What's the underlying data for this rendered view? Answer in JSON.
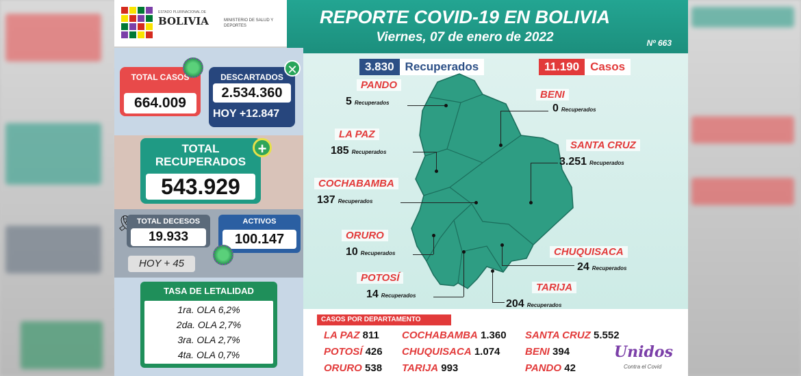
{
  "header": {
    "brand_top": "ESTADO PLURINACIONAL DE",
    "brand": "BOLIVIA",
    "ministry": "MINISTERIO DE SALUD Y DEPORTES",
    "title": "REPORTE COVID-19 EN BOLIVIA",
    "date": "Viernes, 07 de enero de 2022",
    "report_no": "Nº 663"
  },
  "totals": {
    "casos_label": "TOTAL CASOS",
    "casos_value": "664.009",
    "descartados_label": "DESCARTADOS",
    "descartados_value": "2.534.360",
    "descartados_today": "HOY +12.847",
    "recuperados_label": "TOTAL RECUPERADOS",
    "recuperados_value": "543.929",
    "decesos_label": "TOTAL DECESOS",
    "decesos_value": "19.933",
    "decesos_today": "HOY + 45",
    "activos_label": "ACTIVOS",
    "activos_value": "100.147"
  },
  "letalidad": {
    "title": "TASA DE LETALIDAD",
    "rows": [
      "1ra. OLA 6,2%",
      "2da. OLA 2,7%",
      "3ra. OLA  2,7%",
      "4ta. OLA 0,7%"
    ]
  },
  "daily": {
    "recuperados_value": "3.830",
    "recuperados_label": "Recuperados",
    "casos_value": "11.190",
    "casos_label": "Casos"
  },
  "map": {
    "rec_word": "Recuperados",
    "departments": [
      {
        "name": "PANDO",
        "value": "5"
      },
      {
        "name": "BENI",
        "value": "0"
      },
      {
        "name": "LA PAZ",
        "value": "185"
      },
      {
        "name": "SANTA CRUZ",
        "value": "3.251"
      },
      {
        "name": "COCHABAMBA",
        "value": "137"
      },
      {
        "name": "ORURO",
        "value": "10"
      },
      {
        "name": "CHUQUISACA",
        "value": "24"
      },
      {
        "name": "POTOSÍ",
        "value": "14"
      },
      {
        "name": "TARIJA",
        "value": "204"
      }
    ]
  },
  "casos_departamento": {
    "title": "CASOS POR DEPARTAMENTO",
    "rows": [
      {
        "name": "LA PAZ",
        "value": "811"
      },
      {
        "name": "COCHABAMBA",
        "value": "1.360"
      },
      {
        "name": "SANTA CRUZ",
        "value": "5.552"
      },
      {
        "name": "POTOSÍ",
        "value": "426"
      },
      {
        "name": "CHUQUISACA",
        "value": "1.074"
      },
      {
        "name": "BENI",
        "value": "394"
      },
      {
        "name": "ORURO",
        "value": "538"
      },
      {
        "name": "TARIJA",
        "value": "993"
      },
      {
        "name": "PANDO",
        "value": "42"
      }
    ]
  },
  "footer_logo": {
    "text": "Unidos",
    "sub": "Contra el Covid"
  },
  "colors": {
    "teal": "#1f9a84",
    "red": "#e23a3a",
    "navy": "#27467d",
    "map_green": "#2e9d83"
  }
}
